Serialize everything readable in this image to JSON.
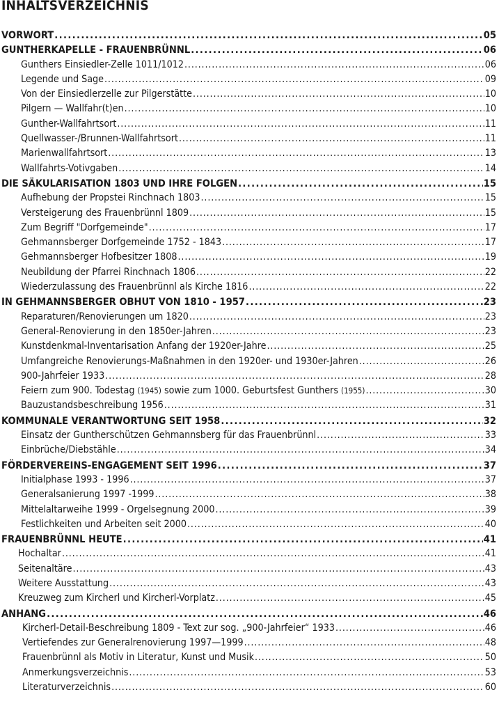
{
  "title": "INHALTSVERZEICHNIS",
  "sections": [
    {
      "label": "VORWORT",
      "page": "05",
      "items": []
    },
    {
      "label": "GUNTHERKAPELLE - FRAUENBRÜNNL",
      "page": "06",
      "items": [
        {
          "label": "Gunthers Einsiedler-Zelle 1011/1012",
          "page": "06"
        },
        {
          "label": "Legende und Sage",
          "page": "09"
        },
        {
          "label": "Von der Einsiedlerzelle zur Pilgerstätte",
          "page": "10"
        },
        {
          "label": "Pilgern — Wallfahr(t)en",
          "page": "10"
        },
        {
          "label": "Gunther-Wallfahrtsort",
          "page": "11"
        },
        {
          "label": "Quellwasser-/Brunnen-Wallfahrtsort",
          "page": "11"
        },
        {
          "label": "Marienwallfahrtsort",
          "page": "13"
        },
        {
          "label": "Wallfahrts-Votivgaben",
          "page": "14"
        }
      ]
    },
    {
      "label": "DIE SÄKULARISATION 1803 UND IHRE FOLGEN",
      "page": "15",
      "items": [
        {
          "label": "Aufhebung der Propstei Rinchnach 1803",
          "page": "15"
        },
        {
          "label": "Versteigerung des Frauenbrünnl 1809",
          "page": "15"
        },
        {
          "label": "Zum Begriff \"Dorfgemeinde\"",
          "page": "17"
        },
        {
          "label": "Gehmannsberger Dorfgemeinde 1752 - 1843",
          "page": "17"
        },
        {
          "label": "Gehmannsberger Hofbesitzer 1808",
          "page": "19"
        },
        {
          "label": "Neubildung der Pfarrei Rinchnach 1806",
          "page": "22"
        },
        {
          "label": "Wiederzulassung des Frauenbrünnl als Kirche 1816",
          "page": "22"
        }
      ]
    },
    {
      "label": "IN GEHMANNSBERGER OBHUT VON 1810 - 1957",
      "page": "23",
      "items": [
        {
          "label": "Reparaturen/Renovierungen um 1820",
          "page": "23"
        },
        {
          "label": "General-Renovierung in den 1850er-Jahren",
          "page": "23"
        },
        {
          "label": "Kunstdenkmal-Inventarisation Anfang der 1920er-Jahre",
          "page": "25"
        },
        {
          "label": "Umfangreiche Renovierungs-Maßnahmen in den 1920er- und 1930er-Jahren",
          "page": "26"
        },
        {
          "label": "900-Jahrfeier 1933",
          "page": "28"
        },
        {
          "label": "Feiern zum 900. Todestag (1945) sowie zum 1000. Geburtsfest Gunthers (1955)",
          "page": "30"
        },
        {
          "label": "Bauzustandsbeschreibung 1956",
          "page": "31"
        }
      ]
    },
    {
      "label": "KOMMUNALE VERANTWORTUNG SEIT 1958",
      "page": "32",
      "items": [
        {
          "label": "Einsatz der Guntherschützen Gehmannsberg für das Frauenbrünnl",
          "page": "33"
        },
        {
          "label": "Einbrüche/Diebstähle",
          "page": "34"
        }
      ]
    },
    {
      "label": "FÖRDERVEREINS-ENGAGEMENT SEIT 1996",
      "page": "37",
      "items": [
        {
          "label": "Initialphase 1993 - 1996",
          "page": "37"
        },
        {
          "label": "Generalsanierung 1997 -1999",
          "page": "38"
        },
        {
          "label": "Mittelaltarweihe 1999 - Orgelsegnung 2000",
          "page": "39"
        },
        {
          "label": "Festlichkeiten und Arbeiten seit 2000",
          "page": "40"
        }
      ]
    },
    {
      "label": "FRAUENBRÜNNL HEUTE",
      "page": "41",
      "items": [
        {
          "label": "Hochaltar",
          "page": "41"
        },
        {
          "label": "Seitenaltäre",
          "page": "43"
        },
        {
          "label": "Weitere Ausstattung",
          "page": "43"
        },
        {
          "label": "Kreuzweg zum Kircherl und Kircherl-Vorplatz",
          "page": "45"
        }
      ]
    },
    {
      "label": "ANHANG",
      "page": "46",
      "items": [
        {
          "label": "Kircherl-Detail-Beschreibung 1809 - Text zur sog. „900-Jahrfeier“ 1933",
          "page": "46"
        },
        {
          "label": "Vertiefendes zur Generalrenovierung 1997—1999",
          "page": "48"
        },
        {
          "label": "Frauenbrünnl als Motiv in Literatur, Kunst und Musik",
          "page": "50"
        },
        {
          "label": "Anmerkungsverzeichnis",
          "page": "53"
        },
        {
          "label": "Literaturverzeichnis",
          "page": "60"
        }
      ]
    }
  ]
}
